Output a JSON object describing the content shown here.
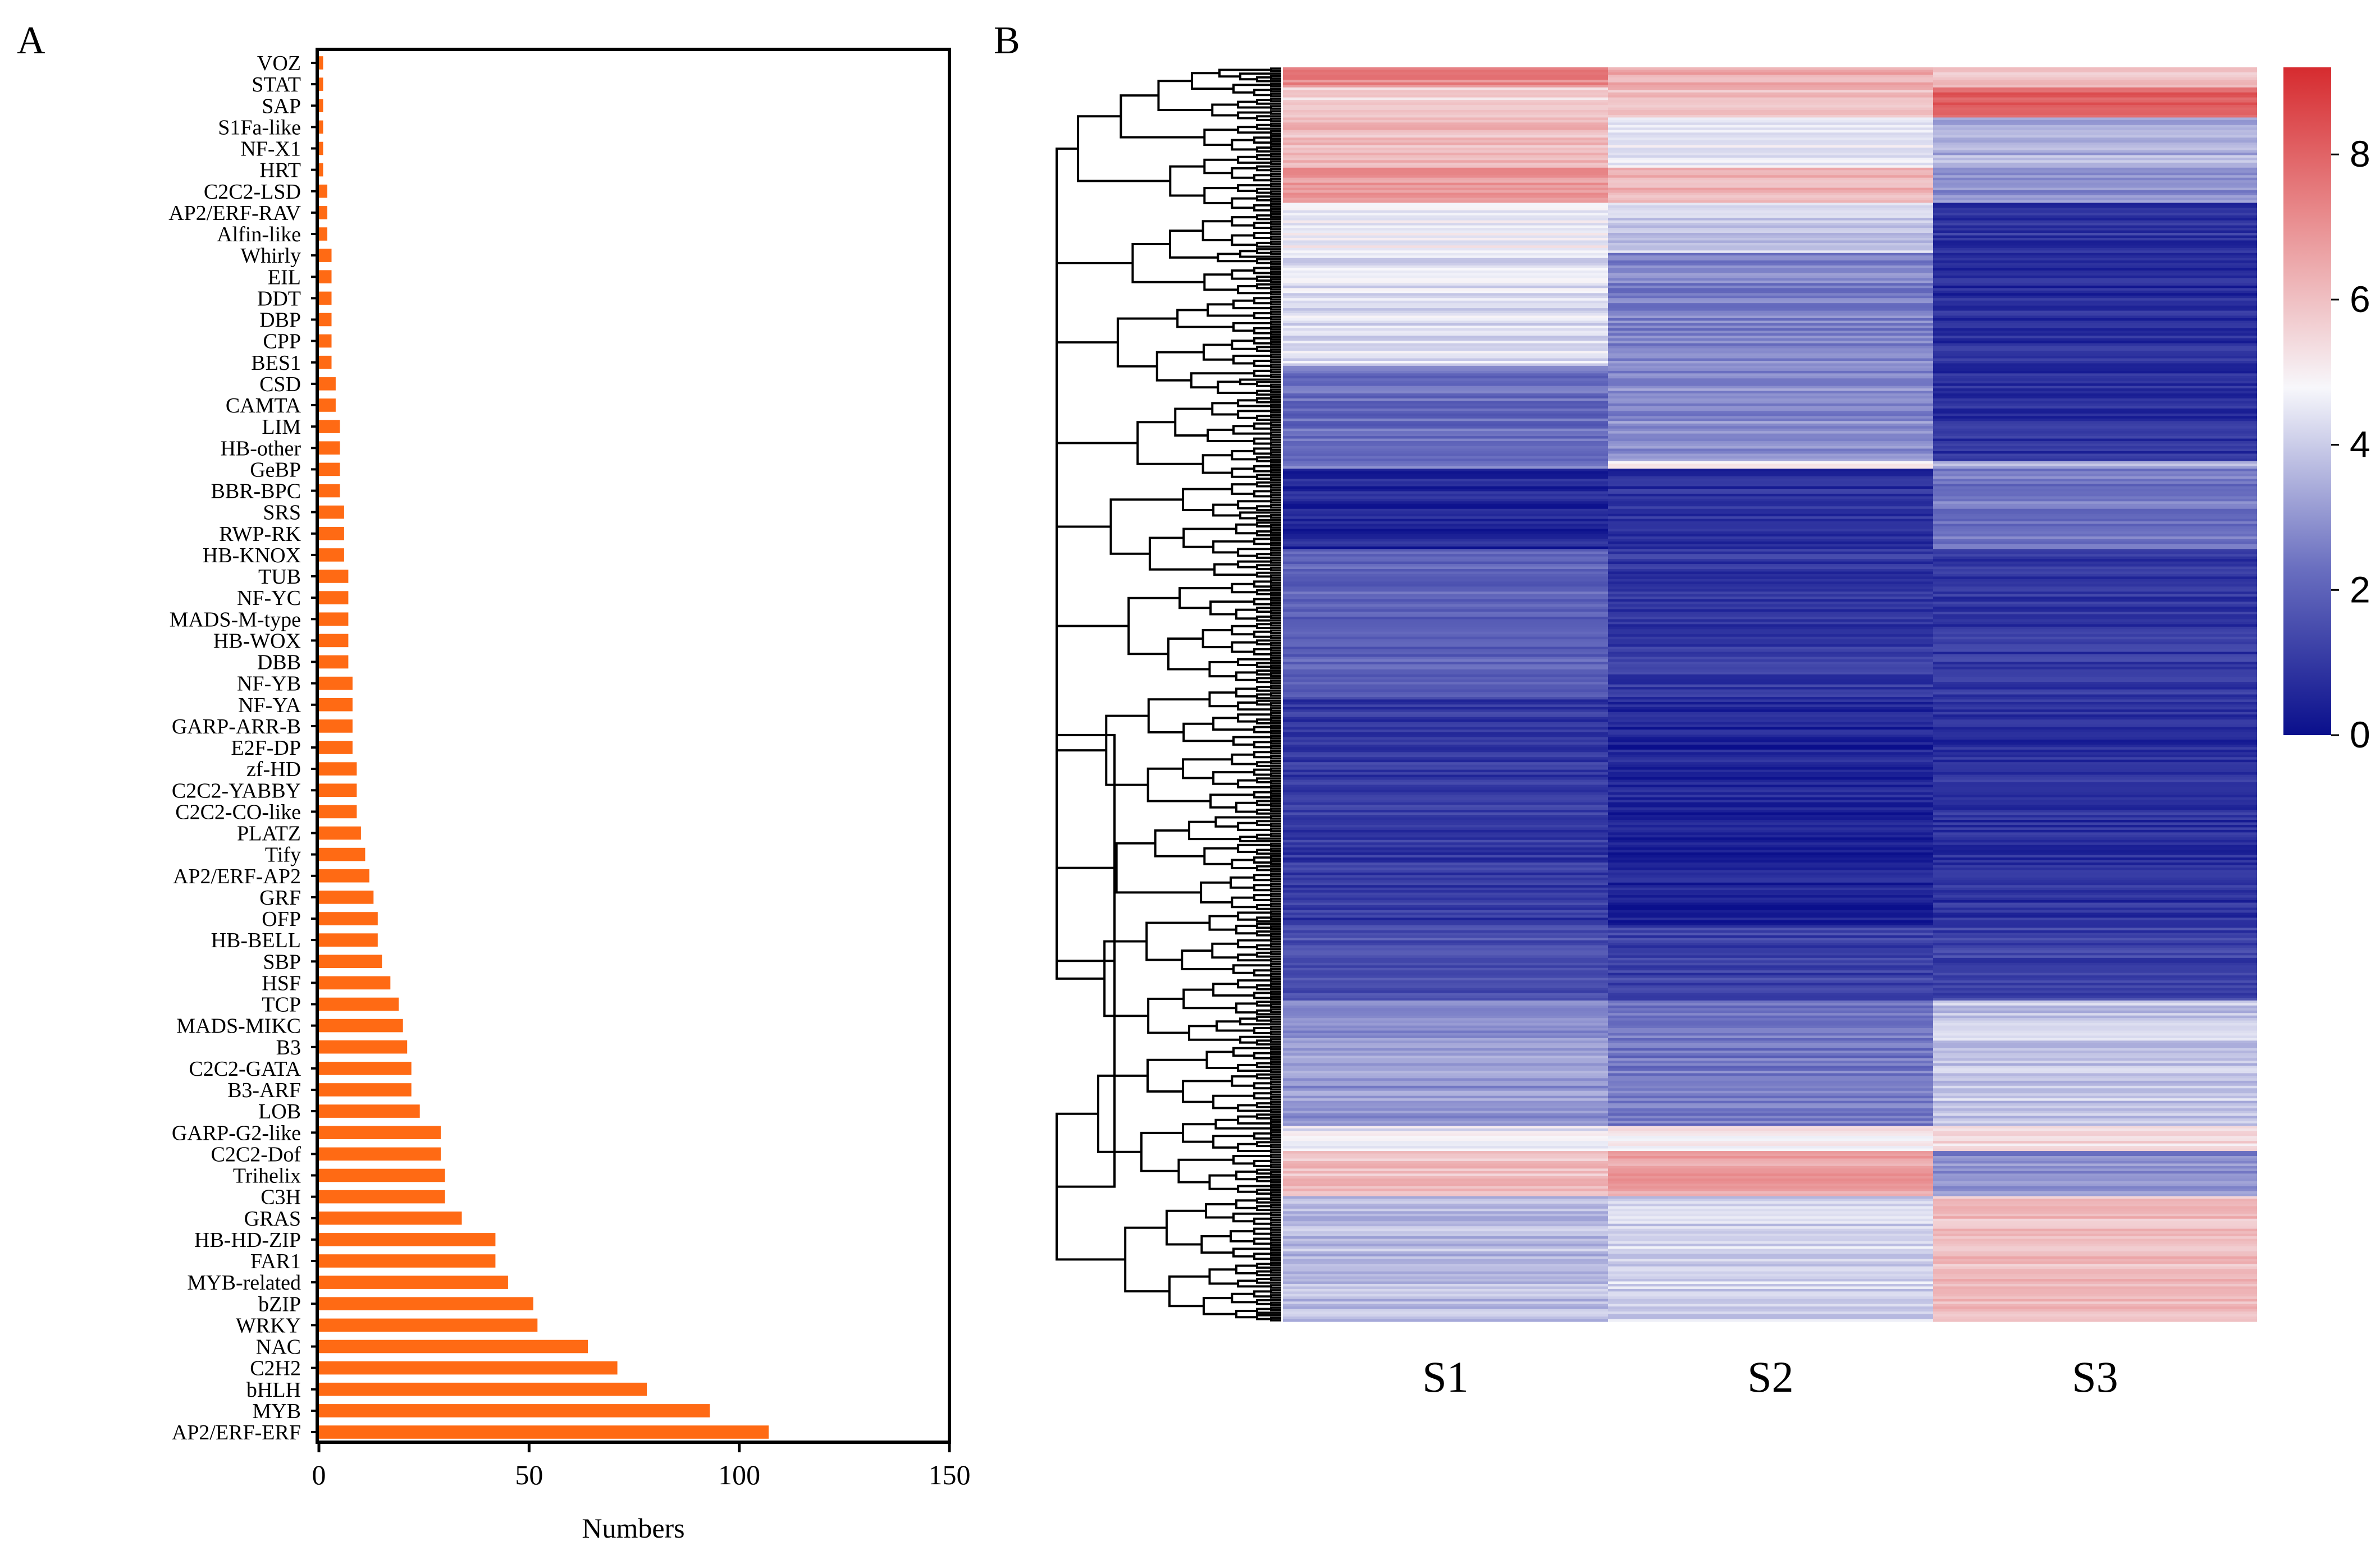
{
  "chart_data": [
    {
      "panel": "A",
      "type": "bar",
      "orientation": "horizontal",
      "bar_color": "#ff6a14",
      "categories": [
        "VOZ",
        "STAT",
        "SAP",
        "S1Fa-like",
        "NF-X1",
        "HRT",
        "C2C2-LSD",
        "AP2/ERF-RAV",
        "Alfin-like",
        "Whirly",
        "EIL",
        "DDT",
        "DBP",
        "CPP",
        "BES1",
        "CSD",
        "CAMTA",
        "LIM",
        "HB-other",
        "GeBP",
        "BBR-BPC",
        "SRS",
        "RWP-RK",
        "HB-KNOX",
        "TUB",
        "NF-YC",
        "MADS-M-type",
        "HB-WOX",
        "DBB",
        "NF-YB",
        "NF-YA",
        "GARP-ARR-B",
        "E2F-DP",
        "zf-HD",
        "C2C2-YABBY",
        "C2C2-CO-like",
        "PLATZ",
        "Tify",
        "AP2/ERF-AP2",
        "GRF",
        "OFP",
        "HB-BELL",
        "SBP",
        "HSF",
        "TCP",
        "MADS-MIKC",
        "B3",
        "C2C2-GATA",
        "B3-ARF",
        "LOB",
        "GARP-G2-like",
        "C2C2-Dof",
        "Trihelix",
        "C3H",
        "GRAS",
        "HB-HD-ZIP",
        "FAR1",
        "MYB-related",
        "bZIP",
        "WRKY",
        "NAC",
        "C2H2",
        "bHLH",
        "MYB",
        "AP2/ERF-ERF"
      ],
      "values": [
        1,
        1,
        1,
        1,
        1,
        1,
        2,
        2,
        2,
        3,
        3,
        3,
        3,
        3,
        3,
        4,
        4,
        5,
        5,
        5,
        5,
        6,
        6,
        6,
        7,
        7,
        7,
        7,
        7,
        8,
        8,
        8,
        8,
        9,
        9,
        9,
        10,
        11,
        12,
        13,
        14,
        14,
        15,
        17,
        19,
        20,
        21,
        22,
        22,
        24,
        29,
        29,
        30,
        30,
        34,
        42,
        42,
        45,
        51,
        52,
        64,
        71,
        78,
        93,
        107
      ],
      "xlabel": "Numbers",
      "ylabel": "",
      "xlim": [
        0,
        150
      ],
      "xticks": [
        0,
        50,
        100,
        150
      ]
    },
    {
      "panel": "B",
      "type": "heatmap",
      "columns": [
        "S1",
        "S2",
        "S3"
      ],
      "dendrogram": "rows",
      "colorbar": {
        "min": 0,
        "max": 9.2,
        "ticks": [
          0,
          2,
          4,
          6,
          8
        ],
        "colors": [
          "#0a0f8c",
          "#6a6fc0",
          "#f7f7fb",
          "#e88a8c",
          "#d62b2f"
        ]
      },
      "row_blocks": [
        {
          "rows": 8,
          "S1": 7.0,
          "S2": 6.2,
          "S3": 5.8
        },
        {
          "rows": 12,
          "S1": 5.4,
          "S2": 5.8,
          "S3": 8.0
        },
        {
          "rows": 20,
          "S1": 5.9,
          "S2": 4.4,
          "S3": 3.4
        },
        {
          "rows": 14,
          "S1": 6.6,
          "S2": 6.0,
          "S3": 2.8
        },
        {
          "rows": 20,
          "S1": 4.6,
          "S2": 3.8,
          "S3": 0.9
        },
        {
          "rows": 45,
          "S1": 4.2,
          "S2": 2.6,
          "S3": 0.7
        },
        {
          "rows": 38,
          "S1": 2.2,
          "S2": 2.8,
          "S3": 0.8
        },
        {
          "rows": 3,
          "S1": 2.4,
          "S2": 5.2,
          "S3": 3.6
        },
        {
          "rows": 32,
          "S1": 0.6,
          "S2": 0.8,
          "S3": 2.4
        },
        {
          "rows": 60,
          "S1": 2.0,
          "S2": 1.0,
          "S3": 1.0
        },
        {
          "rows": 90,
          "S1": 1.0,
          "S2": 0.5,
          "S3": 0.8
        },
        {
          "rows": 30,
          "S1": 1.6,
          "S2": 1.2,
          "S3": 1.2
        },
        {
          "rows": 50,
          "S1": 3.0,
          "S2": 2.4,
          "S3": 3.8
        },
        {
          "rows": 10,
          "S1": 4.4,
          "S2": 4.8,
          "S3": 5.2
        },
        {
          "rows": 18,
          "S1": 5.8,
          "S2": 6.4,
          "S3": 2.8
        },
        {
          "rows": 50,
          "S1": 3.6,
          "S2": 4.0,
          "S3": 5.8
        }
      ]
    }
  ],
  "labels": {
    "panel_a": "A",
    "panel_b": "B"
  }
}
